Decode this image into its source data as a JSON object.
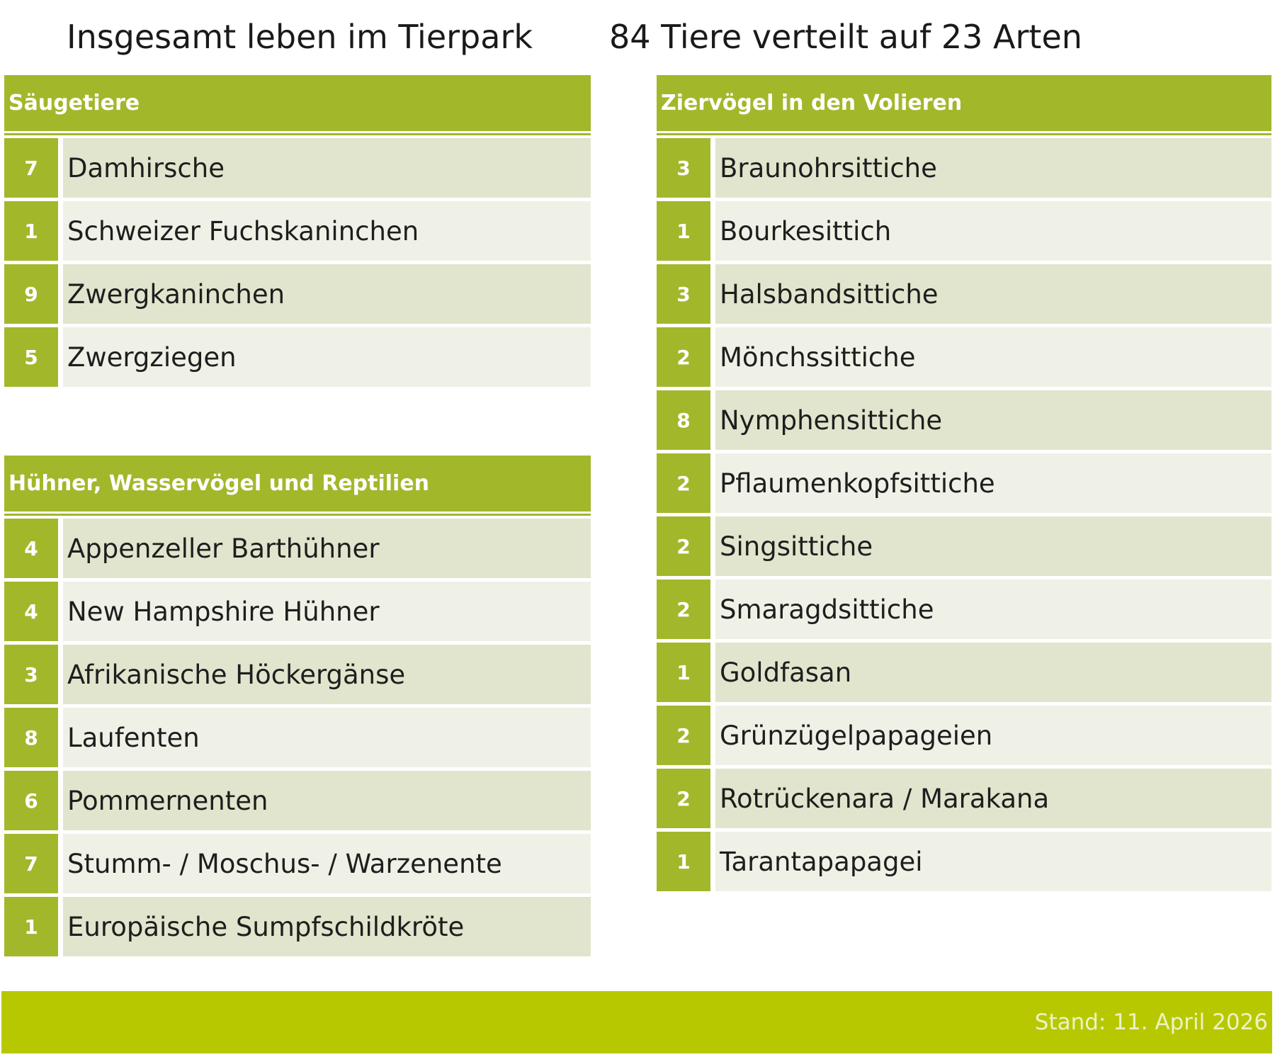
{
  "headline": {
    "left": "Insgesamt leben im Tierpark",
    "right": "84 Tiere verteilt auf 23 Arten"
  },
  "saeugetiere": {
    "title": "Säugetiere",
    "rows": [
      {
        "count": "7",
        "name": "Damhirsche"
      },
      {
        "count": "1",
        "name": "Schweizer Fuchskaninchen"
      },
      {
        "count": "9",
        "name": "Zwergkaninchen"
      },
      {
        "count": "5",
        "name": "Zwergziegen"
      }
    ]
  },
  "huehner": {
    "title": "Hühner, Wasservögel und Reptilien",
    "rows": [
      {
        "count": "4",
        "name": "Appenzeller Barthühner"
      },
      {
        "count": "4",
        "name": "New Hampshire Hühner"
      },
      {
        "count": "3",
        "name": "Afrikanische Höckergänse"
      },
      {
        "count": "8",
        "name": "Laufenten"
      },
      {
        "count": "6",
        "name": "Pommernenten"
      },
      {
        "count": "7",
        "name": "Stumm- / Moschus- / Warzenente"
      },
      {
        "count": "1",
        "name": "Europäische Sumpfschildkröte"
      }
    ]
  },
  "ziervoegel": {
    "title": "Ziervögel in den Volieren",
    "rows": [
      {
        "count": "3",
        "name": "Braunohrsittiche"
      },
      {
        "count": "1",
        "name": "Bourkesittich"
      },
      {
        "count": "3",
        "name": "Halsbandsittiche"
      },
      {
        "count": "2",
        "name": "Mönchssittiche"
      },
      {
        "count": "8",
        "name": "Nymphensittiche"
      },
      {
        "count": "2",
        "name": "Pflaumenkopfsittiche"
      },
      {
        "count": "2",
        "name": "Singsittiche"
      },
      {
        "count": "2",
        "name": "Smaragdsittiche"
      },
      {
        "count": "1",
        "name": "Goldfasan"
      },
      {
        "count": "2",
        "name": "Grünzügelpapageien"
      },
      {
        "count": "2",
        "name": "Rotrückenara / Marakana"
      },
      {
        "count": "1",
        "name": "Tarantapapagei"
      }
    ]
  },
  "footer": {
    "stand": "Stand: 11. April 2026"
  },
  "colors": {
    "header_green": "#a3b72b",
    "footer_green": "#b8c800",
    "row_dark": "#e1e5cd",
    "row_light": "#eff1e6"
  }
}
